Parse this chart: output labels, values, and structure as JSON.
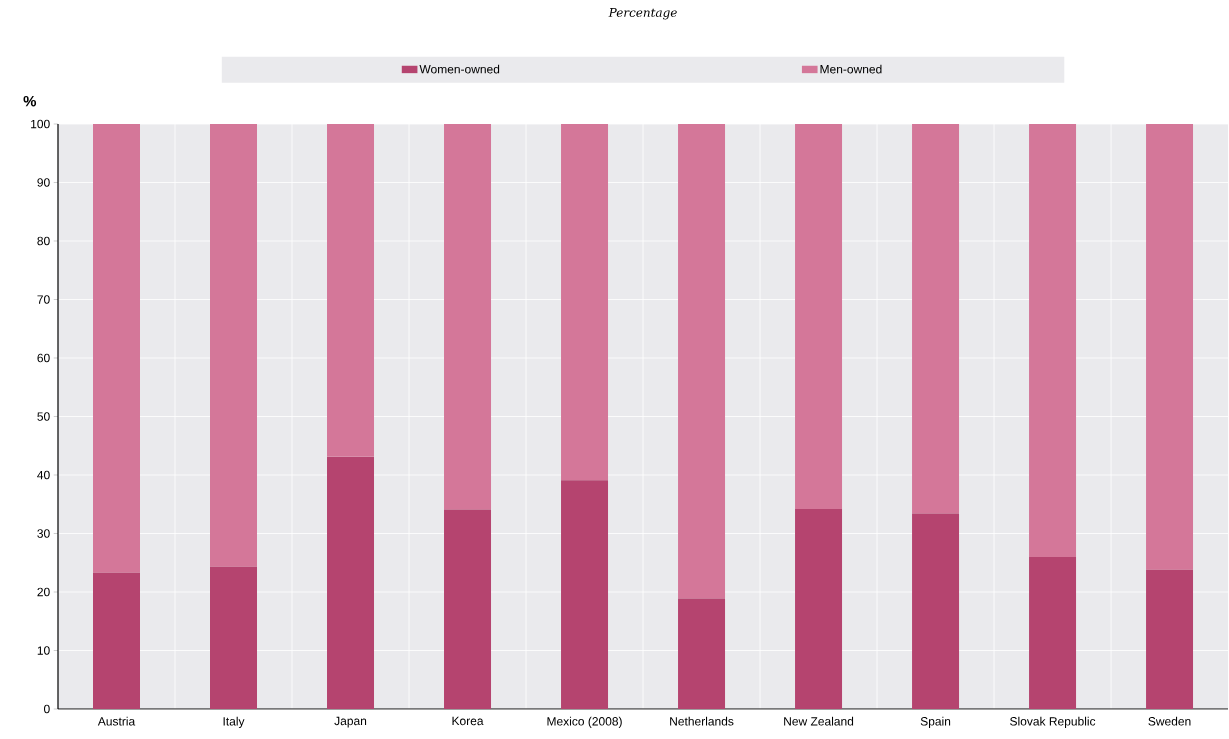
{
  "chart_data": {
    "type": "bar",
    "title": "Percentage",
    "ylabel": "%",
    "categories": [
      "Austria",
      "Italy",
      "Japan",
      "Korea",
      "Mexico (2008)",
      "Netherlands",
      "New Zealand",
      "Spain",
      "Slovak Republic",
      "Sweden"
    ],
    "series": [
      {
        "name": "Women-owned",
        "color": "#b5446f",
        "values": [
          23.3,
          24.3,
          43.1,
          34.1,
          39.1,
          18.9,
          34.2,
          33.4,
          26.0,
          23.8
        ]
      },
      {
        "name": "Men-owned",
        "color": "#d47799",
        "values": [
          76.7,
          75.7,
          56.9,
          65.9,
          60.9,
          81.1,
          65.8,
          66.6,
          74.0,
          76.2
        ]
      }
    ],
    "stacked": true,
    "ylim": [
      0,
      100
    ],
    "yticks": [
      0,
      10,
      20,
      30,
      40,
      50,
      60,
      70,
      80,
      90,
      100
    ],
    "grid": true,
    "legend": "top"
  }
}
